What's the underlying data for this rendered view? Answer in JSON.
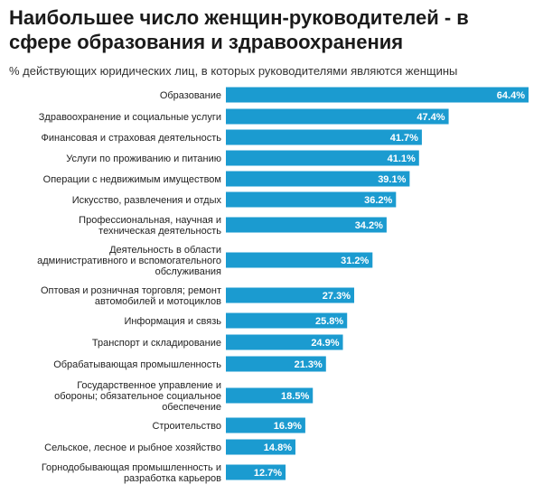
{
  "title": "Наибольшее число женщин-руководителей - в сфере образования и здравоохранения",
  "subtitle": "% действующих юридических лиц, в которых руководителями являются женщины",
  "colors": {
    "bar": "#1b9bd0",
    "value_text": "#ffffff",
    "label_text": "#222222"
  },
  "chart_data": {
    "type": "bar",
    "orientation": "horizontal",
    "title": "Наибольшее число женщин-руководителей - в сфере образования и здравоохранения",
    "subtitle": "% действующих юридических лиц, в которых руководителями являются женщины",
    "xlabel": "",
    "ylabel": "",
    "unit": "%",
    "xlim": [
      0,
      64.4
    ],
    "categories": [
      [
        "Образование"
      ],
      [
        "Здравоохранение и социальные услуги"
      ],
      [
        "Финансовая и страховая деятельность"
      ],
      [
        "Услуги по проживанию и питанию"
      ],
      [
        "Операции с недвижимым имуществом"
      ],
      [
        "Искусство, развлечения и отдых"
      ],
      [
        "Профессиональная, научная и",
        "техническая деятельность"
      ],
      [
        "Деятельность в области",
        "административного и вспомогательного",
        "обслуживания"
      ],
      [
        "Оптовая и розничная торговля; ремонт",
        "автомобилей и мотоциклов"
      ],
      [
        "Информация и связь"
      ],
      [
        "Транспорт и складирование"
      ],
      [
        "Обрабатывающая промышленность"
      ],
      [
        "Государственное управление и",
        "обороны; обязательное социальное",
        "обеспечение"
      ],
      [
        "Строительство"
      ],
      [
        "Сельское, лесное и рыбное хозяйство"
      ],
      [
        "Горнодобывающая промышленность и",
        "разработка карьеров"
      ]
    ],
    "values": [
      64.4,
      47.4,
      41.7,
      41.1,
      39.1,
      36.2,
      34.2,
      31.2,
      27.3,
      25.8,
      24.9,
      21.3,
      18.5,
      16.9,
      14.8,
      12.7
    ],
    "value_labels": [
      "64.4%",
      "47.4%",
      "41.7%",
      "41.1%",
      "39.1%",
      "36.2%",
      "34.2%",
      "31.2%",
      "27.3%",
      "25.8%",
      "24.9%",
      "21.3%",
      "18.5%",
      "16.9%",
      "14.8%",
      "12.7%"
    ]
  }
}
